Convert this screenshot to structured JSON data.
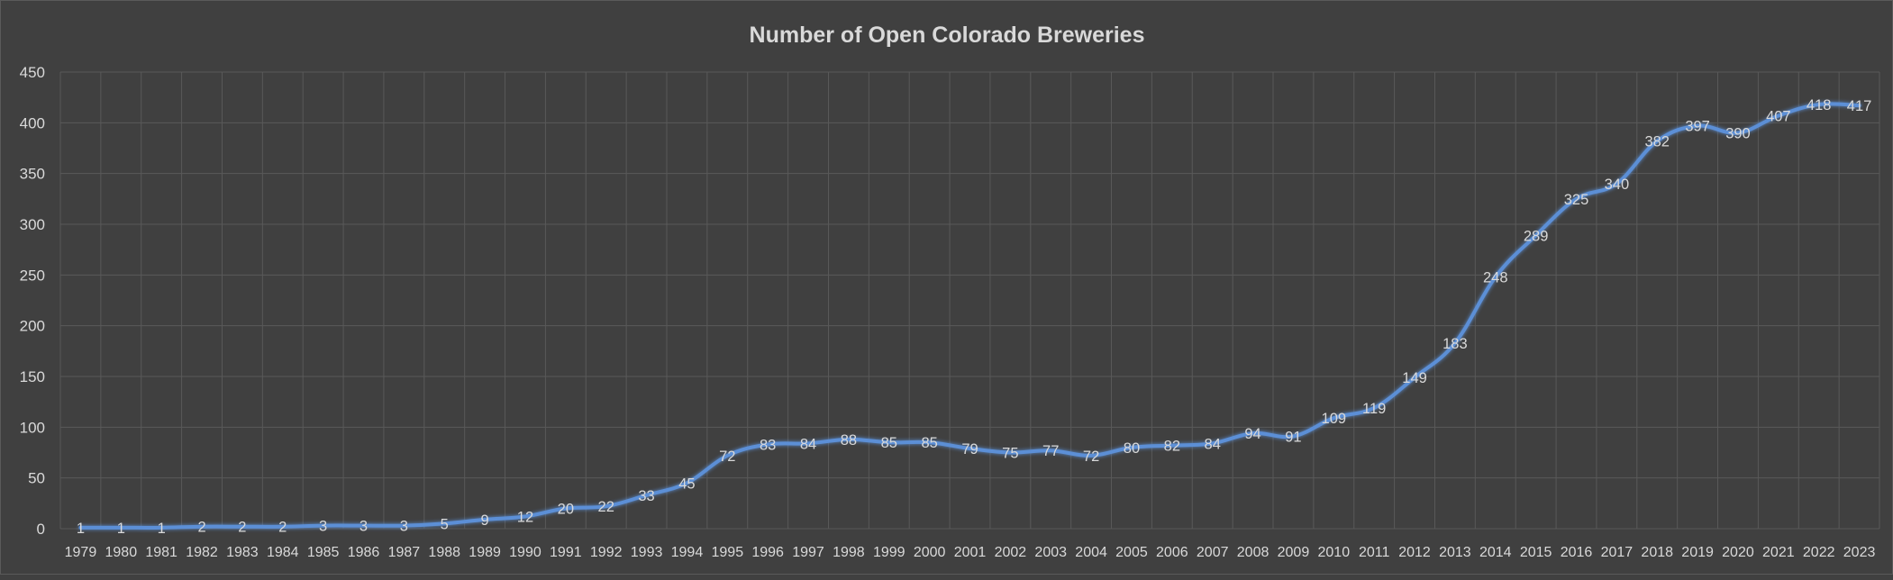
{
  "chart_data": {
    "type": "line",
    "title": "Number of Open Colorado Breweries",
    "xlabel": "",
    "ylabel": "",
    "ylim": [
      0,
      450
    ],
    "y_ticks": [
      0,
      50,
      100,
      150,
      200,
      250,
      300,
      350,
      400,
      450
    ],
    "grid": true,
    "legend": "none",
    "categories": [
      "1979",
      "1980",
      "1981",
      "1982",
      "1983",
      "1984",
      "1985",
      "1986",
      "1987",
      "1988",
      "1989",
      "1990",
      "1991",
      "1992",
      "1993",
      "1994",
      "1995",
      "1996",
      "1997",
      "1998",
      "1999",
      "2000",
      "2001",
      "2002",
      "2003",
      "2004",
      "2005",
      "2006",
      "2007",
      "2008",
      "2009",
      "2010",
      "2011",
      "2012",
      "2013",
      "2014",
      "2015",
      "2016",
      "2017",
      "2018",
      "2019",
      "2020",
      "2021",
      "2022",
      "2023"
    ],
    "series": [
      {
        "color": "#5b8fd6",
        "values": [
          1,
          1,
          1,
          2,
          2,
          2,
          3,
          3,
          3,
          5,
          9,
          12,
          20,
          22,
          33,
          45,
          72,
          83,
          84,
          88,
          85,
          85,
          79,
          75,
          77,
          72,
          80,
          82,
          84,
          94,
          91,
          109,
          119,
          149,
          183,
          248,
          289,
          325,
          340,
          382,
          397,
          390,
          407,
          418,
          417
        ]
      }
    ]
  }
}
